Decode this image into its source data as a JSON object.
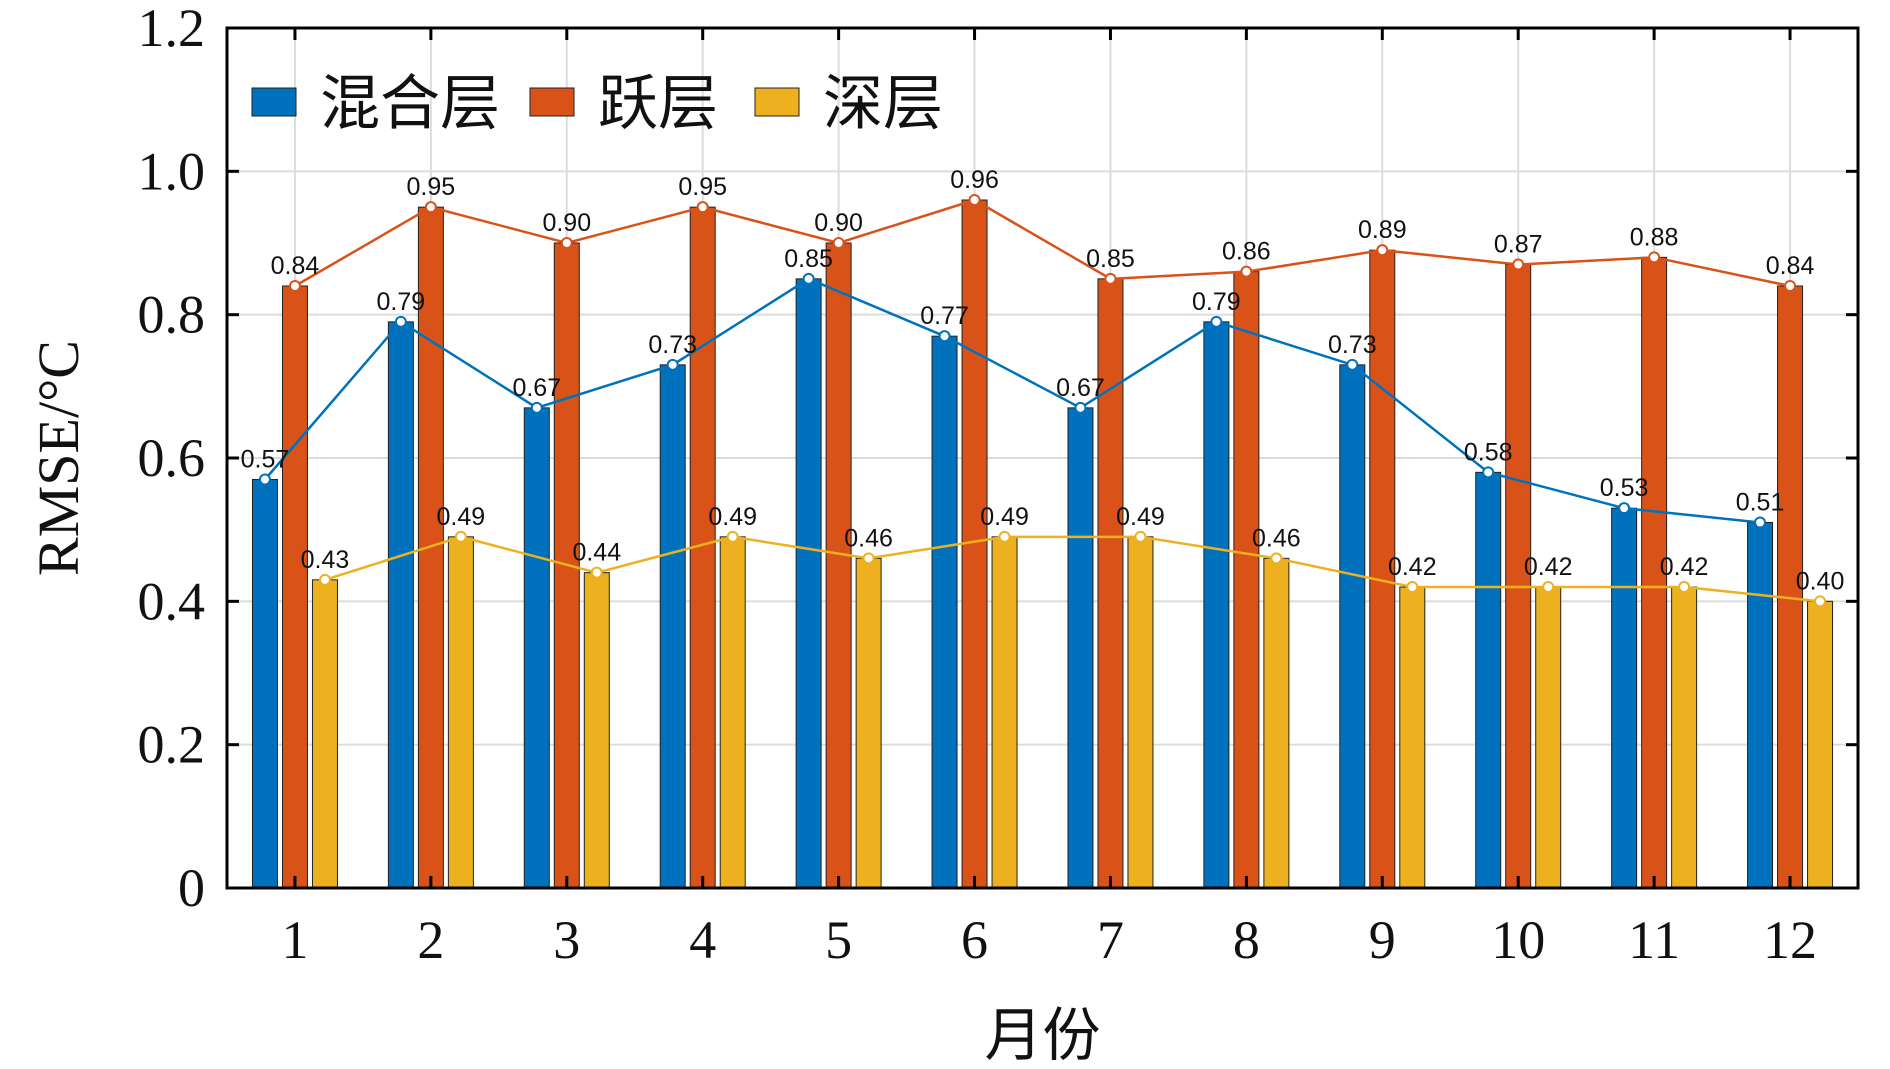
{
  "chart_data": {
    "type": "bar",
    "xlabel": "月份",
    "ylabel": "RMSE/°C",
    "ylim": [
      0,
      1.2
    ],
    "yticks": [
      "0",
      "0.2",
      "0.4",
      "0.6",
      "0.8",
      "1.0",
      "1.2"
    ],
    "categories": [
      "1",
      "2",
      "3",
      "4",
      "5",
      "6",
      "7",
      "8",
      "9",
      "10",
      "11",
      "12"
    ],
    "grid": true,
    "legend_position": "top-left",
    "series": [
      {
        "name": "混合层",
        "color": "#0072BD",
        "values": [
          0.57,
          0.79,
          0.67,
          0.73,
          0.85,
          0.77,
          0.67,
          0.79,
          0.73,
          0.58,
          0.53,
          0.51
        ],
        "labels": [
          "0.57",
          "0.79",
          "0.67",
          "0.73",
          "0.85",
          "0.77",
          "0.67",
          "0.79",
          "0.73",
          "0.58",
          "0.53",
          "0.51"
        ]
      },
      {
        "name": "跃层",
        "color": "#D95319",
        "values": [
          0.84,
          0.95,
          0.9,
          0.95,
          0.9,
          0.96,
          0.85,
          0.86,
          0.89,
          0.87,
          0.88,
          0.84
        ],
        "labels": [
          "0.84",
          "0.95",
          "0.90",
          "0.95",
          "0.90",
          "0.96",
          "0.85",
          "0.86",
          "0.89",
          "0.87",
          "0.88",
          "0.84"
        ]
      },
      {
        "name": "深层",
        "color": "#EDB120",
        "values": [
          0.43,
          0.49,
          0.44,
          0.49,
          0.46,
          0.49,
          0.49,
          0.46,
          0.42,
          0.42,
          0.42,
          0.4
        ],
        "labels": [
          "0.43",
          "0.49",
          "0.44",
          "0.49",
          "0.46",
          "0.49",
          "0.49",
          "0.46",
          "0.42",
          "0.42",
          "0.42",
          "0.40"
        ]
      }
    ]
  }
}
